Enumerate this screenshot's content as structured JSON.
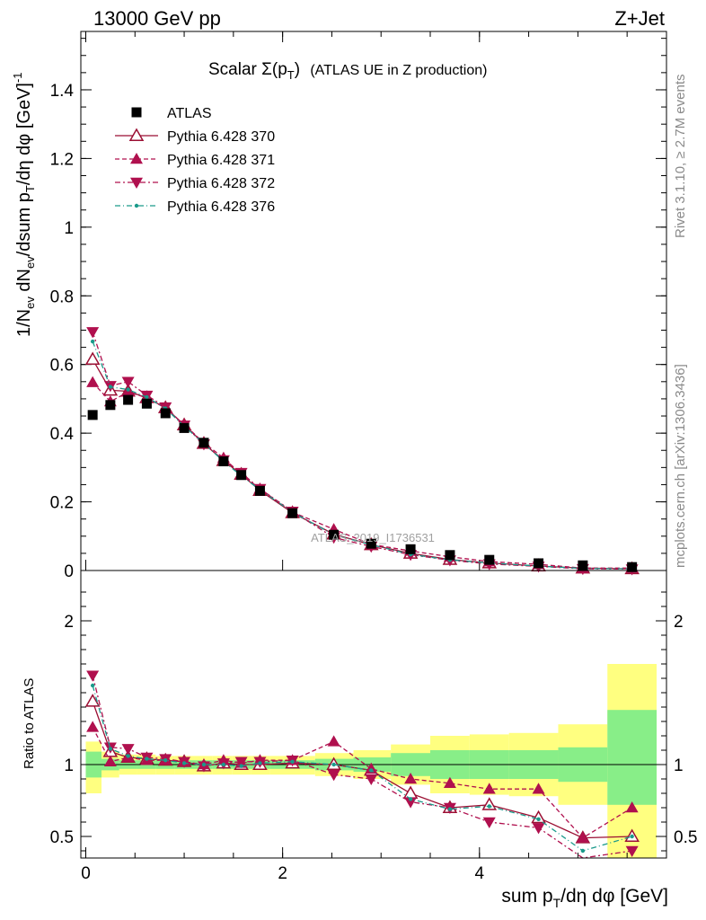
{
  "header": {
    "left": "13000 GeV pp",
    "right": "Z+Jet"
  },
  "plot_title": {
    "main": "Scalar Σ(p",
    "sub": "T",
    "close": ")",
    "rest": "(ATLAS UE in Z production)"
  },
  "side_labels": {
    "rivet": "Rivet 3.1.10, ≥ 2.7M events",
    "mcplots": "mcplots.cern.ch [arXiv:1306.3436]"
  },
  "watermark": "ATLAS_2019_I1736531",
  "axis_labels": {
    "y_top": "1/N_ev dN_ev/dsum p_T/dη dφ [GeV]^-1",
    "y_bottom": "Ratio to ATLAS",
    "x": "sum p_T/dη dφ [GeV]"
  },
  "legend": [
    {
      "label": "ATLAS",
      "color": "#000000",
      "marker": "square"
    },
    {
      "label": "Pythia 6.428 370",
      "color": "#9b0f33",
      "marker": "triangle-up-open"
    },
    {
      "label": "Pythia 6.428 371",
      "color": "#b0104e",
      "marker": "triangle-up"
    },
    {
      "label": "Pythia 6.428 372",
      "color": "#b0104e",
      "marker": "triangle-down"
    },
    {
      "label": "Pythia 6.428 376",
      "color": "#1a9a8a",
      "marker": "dot"
    }
  ],
  "chart_data": {
    "type": "line",
    "x": [
      0.07,
      0.25,
      0.43,
      0.62,
      0.81,
      1.0,
      1.2,
      1.4,
      1.58,
      1.77,
      2.1,
      2.52,
      2.9,
      3.3,
      3.7,
      4.1,
      4.6,
      5.05,
      5.55
    ],
    "xlim": [
      -0.05,
      5.9
    ],
    "xticks": [
      0,
      2,
      4
    ],
    "xlabel": "sum p_T/dη dφ [GeV]",
    "main": {
      "ylim": [
        0,
        1.57
      ],
      "yticks": [
        0,
        0.2,
        0.4,
        0.6,
        0.8,
        1,
        1.2,
        1.4
      ],
      "ylabel": "1/N_ev dN_ev/dsum p_T/dη dφ [GeV]^-1",
      "series": [
        {
          "name": "ATLAS",
          "values": [
            0.453,
            0.482,
            0.497,
            0.486,
            0.458,
            0.415,
            0.372,
            0.318,
            0.278,
            0.232,
            0.167,
            0.104,
            0.078,
            0.062,
            0.045,
            0.031,
            0.021,
            0.015,
            0.01
          ]
        },
        {
          "name": "Pythia 6.428 370",
          "values": [
            0.615,
            0.525,
            0.522,
            0.503,
            0.474,
            0.424,
            0.37,
            0.32,
            0.28,
            0.233,
            0.168,
            0.106,
            0.075,
            0.05,
            0.032,
            0.022,
            0.013,
            0.007,
            0.005
          ]
        },
        {
          "name": "Pythia 6.428 371",
          "values": [
            0.548,
            0.492,
            0.52,
            0.503,
            0.473,
            0.425,
            0.372,
            0.328,
            0.28,
            0.238,
            0.17,
            0.12,
            0.076,
            0.057,
            0.04,
            0.026,
            0.018,
            0.007,
            0.007
          ]
        },
        {
          "name": "Pythia 6.428 372",
          "values": [
            0.695,
            0.538,
            0.55,
            0.51,
            0.476,
            0.423,
            0.368,
            0.322,
            0.285,
            0.238,
            0.172,
            0.096,
            0.07,
            0.046,
            0.03,
            0.019,
            0.012,
            0.005,
            0.004
          ]
        },
        {
          "name": "Pythia 6.428 376",
          "values": [
            0.667,
            0.535,
            0.527,
            0.505,
            0.472,
            0.42,
            0.37,
            0.318,
            0.276,
            0.235,
            0.17,
            0.104,
            0.075,
            0.047,
            0.031,
            0.022,
            0.013,
            0.006,
            0.005
          ]
        }
      ]
    },
    "ratio": {
      "ylim": [
        0.35,
        2.35
      ],
      "yticks": [
        0.5,
        1,
        2
      ],
      "ylabel": "Ratio to ATLAS",
      "bins": [
        0.0,
        0.16,
        0.34,
        0.52,
        0.71,
        0.9,
        1.1,
        1.29,
        1.49,
        1.68,
        1.87,
        2.33,
        2.72,
        3.1,
        3.5,
        3.9,
        4.3,
        4.8,
        5.3,
        5.8
      ],
      "band_inner": [
        [
          0.91,
          1.09
        ],
        [
          0.96,
          1.04
        ],
        [
          0.97,
          1.03
        ],
        [
          0.97,
          1.03
        ],
        [
          0.97,
          1.03
        ],
        [
          0.97,
          1.03
        ],
        [
          0.97,
          1.03
        ],
        [
          0.97,
          1.03
        ],
        [
          0.97,
          1.03
        ],
        [
          0.97,
          1.03
        ],
        [
          0.97,
          1.03
        ],
        [
          0.96,
          1.04
        ],
        [
          0.95,
          1.05
        ],
        [
          0.92,
          1.08
        ],
        [
          0.9,
          1.1
        ],
        [
          0.9,
          1.1
        ],
        [
          0.9,
          1.1
        ],
        [
          0.88,
          1.12
        ],
        [
          0.72,
          1.38
        ]
      ],
      "band_outer": [
        [
          0.8,
          1.16
        ],
        [
          0.91,
          1.09
        ],
        [
          0.93,
          1.07
        ],
        [
          0.93,
          1.07
        ],
        [
          0.93,
          1.06
        ],
        [
          0.93,
          1.06
        ],
        [
          0.93,
          1.06
        ],
        [
          0.93,
          1.06
        ],
        [
          0.93,
          1.06
        ],
        [
          0.93,
          1.06
        ],
        [
          0.93,
          1.06
        ],
        [
          0.92,
          1.08
        ],
        [
          0.9,
          1.1
        ],
        [
          0.86,
          1.14
        ],
        [
          0.8,
          1.2
        ],
        [
          0.79,
          1.21
        ],
        [
          0.78,
          1.22
        ],
        [
          0.72,
          1.28
        ],
        [
          0.35,
          1.7
        ]
      ],
      "series": [
        {
          "name": "Pythia 6.428 370",
          "values": [
            1.44,
            1.09,
            1.05,
            1.04,
            1.03,
            1.02,
            0.99,
            1.01,
            1.0,
            1.0,
            1.01,
            1.0,
            0.96,
            0.8,
            0.7,
            0.72,
            0.63,
            0.49,
            0.5
          ]
        },
        {
          "name": "Pythia 6.428 371",
          "values": [
            1.26,
            1.02,
            1.05,
            1.03,
            1.03,
            1.02,
            1.0,
            1.03,
            1.01,
            1.03,
            1.03,
            1.16,
            0.97,
            0.9,
            0.87,
            0.83,
            0.83,
            0.49,
            0.7
          ]
        },
        {
          "name": "Pythia 6.428 372",
          "values": [
            1.62,
            1.12,
            1.11,
            1.05,
            1.04,
            1.02,
            0.99,
            1.01,
            1.02,
            1.02,
            1.03,
            0.93,
            0.9,
            0.74,
            0.7,
            0.6,
            0.56,
            0.33,
            0.4
          ]
        },
        {
          "name": "Pythia 6.428 376",
          "values": [
            1.55,
            1.11,
            1.06,
            1.04,
            1.03,
            1.01,
            1.0,
            1.0,
            0.99,
            1.01,
            1.02,
            1.0,
            0.96,
            0.76,
            0.69,
            0.71,
            0.62,
            0.4,
            0.5
          ]
        }
      ]
    }
  }
}
